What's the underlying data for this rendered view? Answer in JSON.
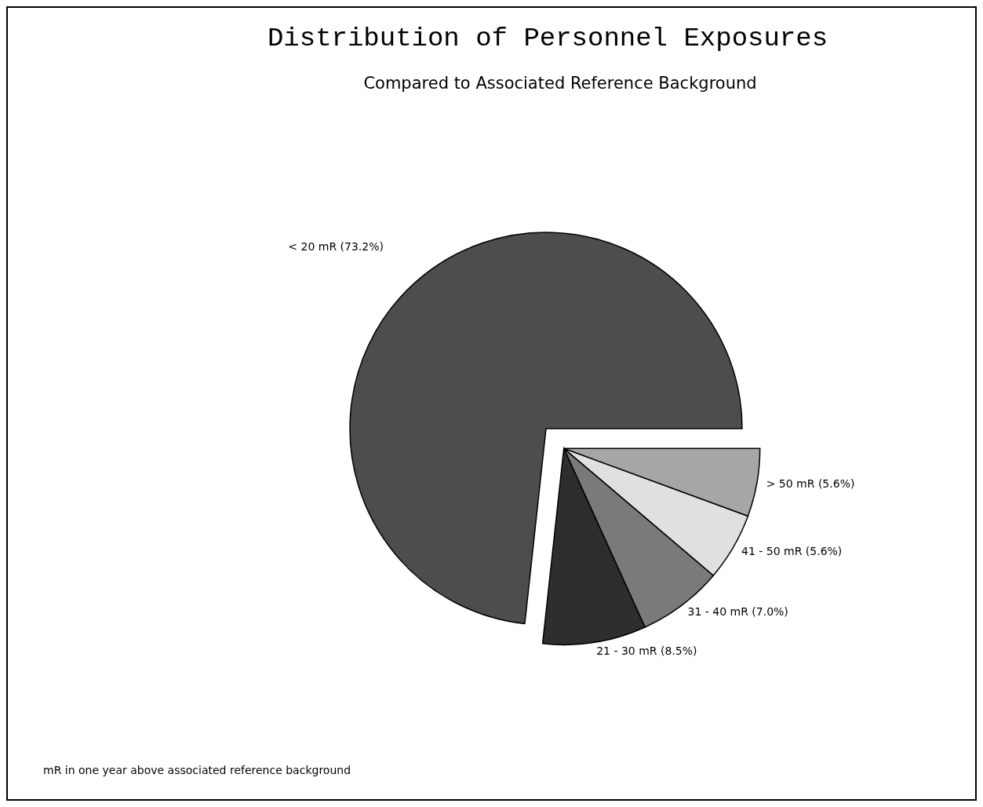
{
  "chart_data": {
    "type": "pie",
    "title": "Distribution of Personnel Exposures",
    "subtitle": "Compared to Associated Reference Background",
    "categories": [
      "> 50 mR",
      "41 - 50 mR",
      "31 - 40 mR",
      "21 - 30 mR",
      "< 20 mR"
    ],
    "values": [
      5.6,
      5.6,
      7.0,
      8.5,
      73.2
    ],
    "value_labels": [
      "(5.6%)",
      "(5.6%)",
      "(7.0%)",
      "(8.5%)",
      "(73.2%)"
    ],
    "colors": [
      "#a6a6a6",
      "#e0e0e0",
      "#7a7a7a",
      "#2e2e2e",
      "#4d4d4d"
    ],
    "annotations": [
      "mR in one year above associated reference background"
    ]
  }
}
